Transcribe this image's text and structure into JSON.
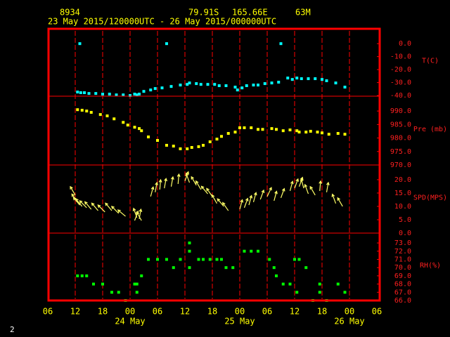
{
  "header": {
    "station": "8934",
    "latitude": "79.91S",
    "longitude": "165.66E",
    "elevation": "63M",
    "period": "23 May 2015/120000UTC - 26 May 2015/000000UTC"
  },
  "page_number": "2",
  "x_axis": {
    "xlim": [
      6,
      78
    ],
    "xticks": [
      {
        "value": 6,
        "label": "06"
      },
      {
        "value": 12,
        "label": "12"
      },
      {
        "value": 18,
        "label": "18"
      },
      {
        "value": 24,
        "label": "00"
      },
      {
        "value": 30,
        "label": "06"
      },
      {
        "value": 36,
        "label": "12"
      },
      {
        "value": 42,
        "label": "18"
      },
      {
        "value": 48,
        "label": "00"
      },
      {
        "value": 54,
        "label": "06"
      },
      {
        "value": 60,
        "label": "12"
      },
      {
        "value": 66,
        "label": "18"
      },
      {
        "value": 72,
        "label": "00"
      },
      {
        "value": 78,
        "label": "06"
      }
    ],
    "day_labels": [
      {
        "value": 24,
        "label": "24 May"
      },
      {
        "value": 48,
        "label": "25 May"
      },
      {
        "value": 72,
        "label": "26 May"
      }
    ]
  },
  "chart_data": [
    {
      "type": "scatter",
      "y_label": "T(C)",
      "color": "#00ffff",
      "ylim": [
        -40.5,
        12
      ],
      "yticks": [
        {
          "value": 0,
          "label": "0.0"
        },
        {
          "value": -10,
          "label": "-10.0"
        },
        {
          "value": -20,
          "label": "-20.0"
        },
        {
          "value": -30,
          "label": "-30.0"
        },
        {
          "value": -40,
          "label": "-40.0"
        }
      ],
      "x": [
        12.5,
        13,
        13.2,
        14,
        15,
        16.5,
        18,
        19.5,
        21,
        22.5,
        24,
        25,
        25.5,
        26,
        27,
        28.5,
        29.5,
        31,
        32,
        33,
        35,
        36.5,
        37,
        38.5,
        39.5,
        41,
        42.5,
        43.5,
        45,
        47,
        47.5,
        48.5,
        49.5,
        51,
        52,
        53.5,
        55,
        56.5,
        57,
        58.5,
        59.5,
        60.5,
        61.5,
        63,
        64.5,
        66,
        67,
        69,
        71
      ],
      "values": [
        -37.3,
        0,
        -37.8,
        -37.8,
        -38.4,
        -38.4,
        -38.9,
        -38.9,
        -39.5,
        -39.5,
        -40,
        -38.9,
        -39.5,
        -38.9,
        -36.8,
        -35.7,
        -34.6,
        -34.1,
        0,
        -33,
        -31.9,
        -31.4,
        -30.3,
        -30.8,
        -31.4,
        -31.4,
        -31.4,
        -32.4,
        -32.4,
        -33.5,
        -35.7,
        -34.1,
        -32.4,
        -31.9,
        -31.9,
        -30.8,
        -30.3,
        -29.7,
        0,
        -26.5,
        -27.6,
        -26.5,
        -27,
        -27,
        -27,
        -27.6,
        -28.6,
        -30.3,
        -33.5
      ]
    },
    {
      "type": "scatter",
      "y_label": "Pre (mb)",
      "color": "#ffff00",
      "ylim": [
        970,
        995.5
      ],
      "yticks": [
        {
          "value": 990,
          "label": "990.0"
        },
        {
          "value": 985,
          "label": "985.0"
        },
        {
          "value": 980,
          "label": "980.0"
        },
        {
          "value": 975,
          "label": "975.0"
        },
        {
          "value": 970,
          "label": "970.0"
        }
      ],
      "x": [
        12.5,
        13.5,
        14.5,
        15.5,
        17.5,
        19,
        20.5,
        22.5,
        23.5,
        25,
        26,
        26.5,
        28,
        30,
        32,
        33.5,
        35,
        36.5,
        37.5,
        39,
        40,
        41.5,
        43,
        44,
        45.5,
        47,
        48,
        49,
        50.5,
        52,
        53,
        55,
        56,
        57.5,
        59,
        60.5,
        61,
        62.5,
        63.5,
        65,
        66,
        67.5,
        69.5,
        71
      ],
      "values": [
        990.5,
        990.3,
        990,
        989.5,
        988.7,
        988.2,
        987.1,
        985.8,
        984.8,
        984,
        983.5,
        982.7,
        980.4,
        979.1,
        977.3,
        977,
        976,
        976,
        976.5,
        976.8,
        977.3,
        978.6,
        979.6,
        980.6,
        981.7,
        982.2,
        983.8,
        983.8,
        983.8,
        983.2,
        983.2,
        983.5,
        983.2,
        982.7,
        983,
        982.7,
        982.2,
        982.2,
        982.5,
        982.2,
        981.9,
        981.4,
        981.7,
        981.4
      ]
    },
    {
      "type": "wind",
      "y_label": "SPD(MPS)",
      "color": "#ffff66",
      "ylim": [
        0,
        25.5
      ],
      "yticks": [
        {
          "value": 20,
          "label": "20.0"
        },
        {
          "value": 15,
          "label": "15.0"
        },
        {
          "value": 10,
          "label": "10.0"
        },
        {
          "value": 5,
          "label": "5.0"
        },
        {
          "value": 0,
          "label": "0.0"
        }
      ],
      "x": [
        12,
        12.5,
        13,
        13.5,
        14.5,
        15.5,
        17,
        18.5,
        20,
        21.5,
        23,
        25,
        25.5,
        26,
        26.5,
        28.5,
        29.5,
        30.5,
        31.5,
        33,
        34.5,
        36,
        37,
        38.5,
        39.5,
        41,
        42,
        43,
        44.5,
        45.5,
        48,
        49,
        50,
        51,
        52.5,
        54,
        55.5,
        57,
        59,
        60,
        61,
        62,
        63,
        64.5,
        65.5,
        67,
        69,
        70.5
      ],
      "values": [
        14.2,
        11.6,
        10.5,
        10,
        9.5,
        8.9,
        8.4,
        7.9,
        8.4,
        7.4,
        6.3,
        4.7,
        5.8,
        5.3,
        4.7,
        13.7,
        15.3,
        16.3,
        16.8,
        17.4,
        18.4,
        19.5,
        18.9,
        17.9,
        16.3,
        14.7,
        13.7,
        11.1,
        10,
        8.4,
        8.9,
        9.5,
        10.5,
        11.6,
        12.6,
        13.7,
        12.1,
        13.2,
        15.8,
        16.8,
        17.4,
        16.8,
        14.7,
        14.2,
        15.8,
        15.3,
        11.1,
        10
      ],
      "directions": [
        330,
        325,
        320,
        320,
        315,
        320,
        320,
        315,
        320,
        315,
        310,
        20,
        340,
        10,
        330,
        15,
        10,
        5,
        10,
        10,
        5,
        20,
        340,
        330,
        330,
        320,
        325,
        330,
        320,
        325,
        15,
        20,
        15,
        15,
        20,
        25,
        15,
        20,
        15,
        20,
        20,
        345,
        340,
        330,
        5,
        10,
        340,
        330
      ]
    },
    {
      "type": "scatter",
      "y_label": "RH(%)",
      "color": "#00ff00",
      "ylim": [
        66,
        74.2
      ],
      "yticks": [
        {
          "value": 73,
          "label": "73.0"
        },
        {
          "value": 72,
          "label": "72.0"
        },
        {
          "value": 71,
          "label": "71.0"
        },
        {
          "value": 70,
          "label": "70.0"
        },
        {
          "value": 69,
          "label": "69.0"
        },
        {
          "value": 68,
          "label": "68.0"
        },
        {
          "value": 67,
          "label": "67.0"
        },
        {
          "value": 66,
          "label": "66.0"
        }
      ],
      "x": [
        12.5,
        13.5,
        14.5,
        16,
        18,
        20,
        21.5,
        23,
        25,
        25.5,
        25.5,
        26.5,
        28,
        30,
        32,
        33.5,
        35,
        37,
        37,
        37,
        39,
        40,
        41.5,
        43,
        44,
        45,
        46.5,
        49,
        50.5,
        52,
        54.5,
        55.5,
        56,
        57.5,
        59,
        60,
        60.5,
        61,
        62.5,
        64,
        65.5,
        65.5,
        67,
        69.5,
        71
      ],
      "values": [
        69,
        69,
        69,
        68,
        68,
        67,
        67,
        66,
        68,
        68,
        67,
        69,
        71,
        71,
        71,
        70,
        71,
        73,
        72,
        70,
        71,
        71,
        71,
        71,
        71,
        70,
        70,
        72,
        72,
        72,
        71,
        70,
        69,
        68,
        68,
        71,
        67,
        71,
        70,
        66,
        68,
        67,
        66,
        68,
        67
      ]
    }
  ]
}
